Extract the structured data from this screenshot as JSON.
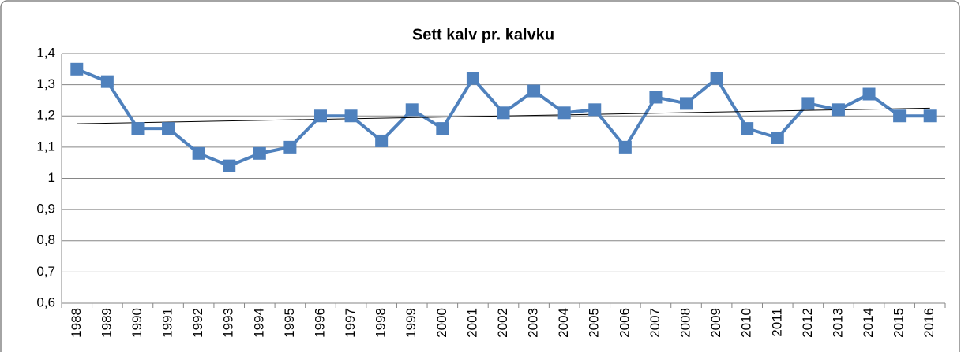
{
  "chart_data": {
    "type": "line",
    "title": "Sett kalv pr. kalvku",
    "categories": [
      "1988",
      "1989",
      "1990",
      "1991",
      "1992",
      "1993",
      "1994",
      "1995",
      "1996",
      "1997",
      "1998",
      "1999",
      "2000",
      "2001",
      "2002",
      "2003",
      "2004",
      "2005",
      "2006",
      "2007",
      "2008",
      "2009",
      "2010",
      "2011",
      "2012",
      "2013",
      "2014",
      "2015",
      "2016"
    ],
    "values": [
      1.35,
      1.31,
      1.16,
      1.16,
      1.08,
      1.04,
      1.08,
      1.1,
      1.2,
      1.2,
      1.12,
      1.22,
      1.16,
      1.32,
      1.21,
      1.28,
      1.21,
      1.22,
      1.1,
      1.26,
      1.24,
      1.32,
      1.16,
      1.13,
      1.24,
      1.22,
      1.27,
      1.2,
      1.2
    ],
    "color": "#4f81bd",
    "trendline": {
      "values": [
        1.175,
        1.225
      ],
      "color": "#000000"
    },
    "ylim": [
      0.6,
      1.4
    ],
    "yticks": [
      {
        "value": 0.6,
        "label": "0,6"
      },
      {
        "value": 0.7,
        "label": "0,7"
      },
      {
        "value": 0.8,
        "label": "0,8"
      },
      {
        "value": 0.9,
        "label": "0,9"
      },
      1,
      {
        "value": 1.1,
        "label": "1,1"
      },
      {
        "value": 1.2,
        "label": "1,2"
      },
      {
        "value": 1.3,
        "label": "1,3"
      },
      {
        "value": 1.4,
        "label": "1,4"
      }
    ],
    "grid": true
  }
}
